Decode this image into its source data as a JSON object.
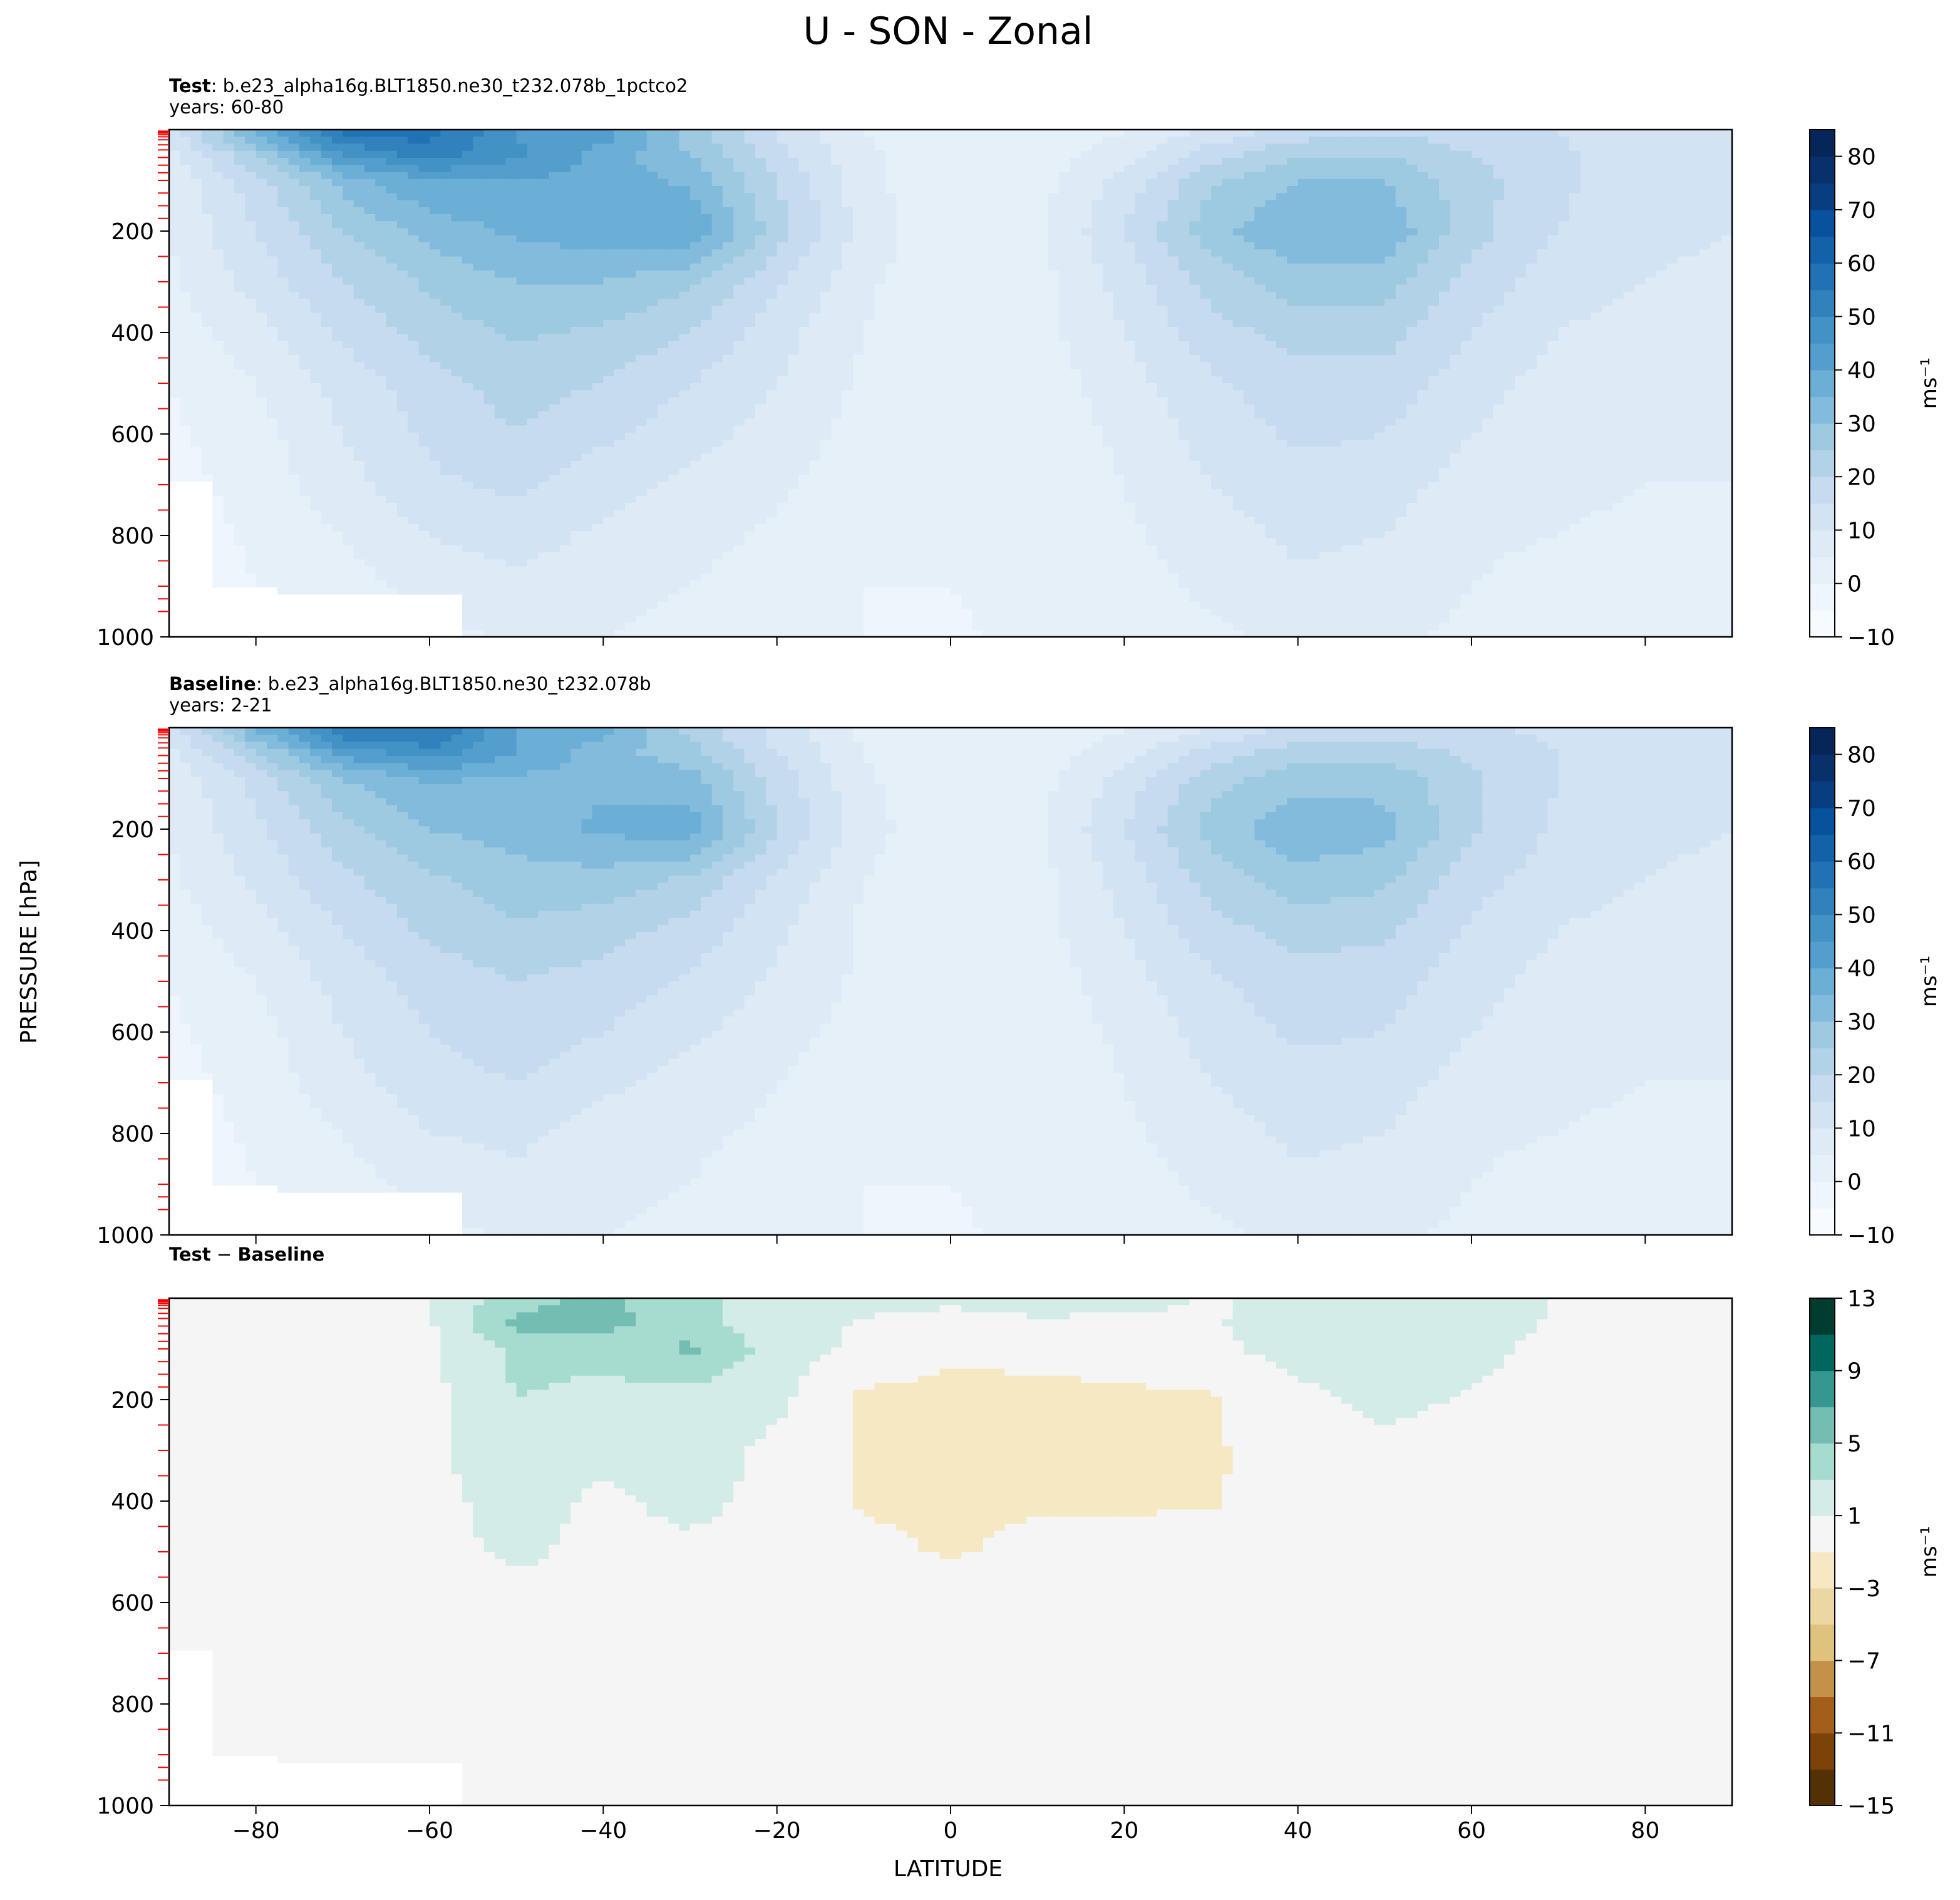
{
  "figure": {
    "title": "U - SON - Zonal",
    "ylabel": "PRESSURE [hPa]",
    "xlabel": "LATITUDE",
    "x_ticks": [
      -80,
      -60,
      -40,
      -20,
      0,
      20,
      40,
      60,
      80
    ],
    "x_tick_labels": [
      "−80",
      "−60",
      "−40",
      "−20",
      "0",
      "20",
      "40",
      "60",
      "80"
    ],
    "y_ticks": [
      200,
      400,
      600,
      800,
      1000
    ],
    "xlim": [
      -90,
      90
    ],
    "ylim": [
      1000,
      0
    ]
  },
  "chart_data": [
    {
      "type": "heatmap",
      "panel": "test",
      "header_bold": "Test",
      "header_rest": ": b.e23_alpha16g.BLT1850.ne30_t232.078b_1pctco2",
      "subheader": "years: 60-80",
      "colorbar": {
        "levels": [
          -10,
          -5,
          0,
          5,
          10,
          15,
          20,
          25,
          30,
          35,
          40,
          45,
          50,
          55,
          60,
          65,
          70,
          75,
          80,
          85
        ],
        "ticks": [
          -10,
          0,
          10,
          20,
          30,
          40,
          50,
          60,
          70,
          80
        ],
        "tick_labels": [
          "−10",
          "0",
          "10",
          "20",
          "30",
          "40",
          "50",
          "60",
          "70",
          "80"
        ],
        "label": "ms⁻¹",
        "colormap": "Blues"
      },
      "lat": [
        -90,
        -80,
        -70,
        -60,
        -50,
        -40,
        -30,
        -20,
        -10,
        0,
        10,
        20,
        30,
        40,
        50,
        60,
        70,
        80,
        90
      ],
      "pressure": [
        10,
        50,
        100,
        200,
        300,
        400,
        500,
        600,
        700,
        800,
        900,
        1000
      ],
      "u": [
        [
          12,
          35,
          55,
          57,
          45,
          42,
          28,
          15,
          5,
          2,
          3,
          5,
          12,
          18,
          20,
          18,
          15,
          12,
          10
        ],
        [
          8,
          25,
          45,
          52,
          46,
          38,
          30,
          17,
          6,
          1,
          2,
          8,
          18,
          25,
          25,
          20,
          16,
          12,
          10
        ],
        [
          6,
          18,
          32,
          40,
          40,
          38,
          34,
          20,
          7,
          0,
          3,
          12,
          24,
          30,
          30,
          22,
          16,
          12,
          10
        ],
        [
          5,
          15,
          25,
          32,
          36,
          38,
          40,
          22,
          8,
          1,
          4,
          15,
          28,
          35,
          34,
          22,
          15,
          12,
          10
        ],
        [
          4,
          12,
          20,
          26,
          30,
          30,
          26,
          16,
          6,
          1,
          3,
          12,
          22,
          28,
          27,
          18,
          12,
          10,
          8
        ],
        [
          2,
          8,
          16,
          22,
          26,
          24,
          20,
          12,
          5,
          1,
          3,
          10,
          18,
          22,
          22,
          15,
          10,
          8,
          7
        ],
        [
          0,
          5,
          12,
          18,
          22,
          20,
          15,
          10,
          4,
          1,
          2,
          8,
          14,
          18,
          18,
          12,
          8,
          7,
          6
        ],
        [
          -1,
          3,
          10,
          16,
          20,
          16,
          12,
          8,
          3,
          1,
          2,
          6,
          12,
          16,
          15,
          10,
          7,
          6,
          5
        ],
        [
          -2,
          2,
          8,
          14,
          16,
          12,
          9,
          6,
          2,
          0,
          2,
          5,
          10,
          13,
          12,
          8,
          6,
          5,
          5
        ],
        [
          -3,
          1,
          5,
          10,
          12,
          9,
          7,
          4,
          1,
          0,
          2,
          4,
          8,
          11,
          10,
          6,
          5,
          4,
          3
        ],
        [
          -4,
          0,
          3,
          7,
          9,
          7,
          5,
          2,
          0,
          0,
          2,
          3,
          6,
          9,
          8,
          5,
          3,
          2,
          3
        ],
        [
          -5,
          -2,
          0,
          3,
          6,
          5,
          3,
          1,
          0,
          -1,
          2,
          2,
          4,
          6,
          6,
          4,
          2,
          1,
          2
        ]
      ]
    },
    {
      "type": "heatmap",
      "panel": "baseline",
      "header_bold": "Baseline",
      "header_rest": ": b.e23_alpha16g.BLT1850.ne30_t232.078b",
      "subheader": "years: 2-21",
      "colorbar": {
        "levels": [
          -10,
          -5,
          0,
          5,
          10,
          15,
          20,
          25,
          30,
          35,
          40,
          45,
          50,
          55,
          60,
          65,
          70,
          75,
          80,
          85
        ],
        "ticks": [
          -10,
          0,
          10,
          20,
          30,
          40,
          50,
          60,
          70,
          80
        ],
        "tick_labels": [
          "−10",
          "0",
          "10",
          "20",
          "30",
          "40",
          "50",
          "60",
          "70",
          "80"
        ],
        "label": "ms⁻¹",
        "colormap": "Blues"
      },
      "lat": [
        -90,
        -80,
        -70,
        -60,
        -50,
        -40,
        -30,
        -20,
        -10,
        0,
        10,
        20,
        30,
        40,
        50,
        60,
        70,
        80,
        90
      ],
      "pressure": [
        10,
        50,
        100,
        200,
        300,
        400,
        500,
        600,
        700,
        800,
        900,
        1000
      ],
      "u": [
        [
          12,
          34,
          53,
          55,
          40,
          36,
          24,
          13,
          4,
          2,
          2,
          5,
          11,
          17,
          18,
          16,
          14,
          12,
          10
        ],
        [
          8,
          24,
          42,
          48,
          40,
          32,
          27,
          15,
          5,
          1,
          2,
          8,
          17,
          23,
          23,
          19,
          15,
          12,
          10
        ],
        [
          6,
          17,
          30,
          36,
          34,
          34,
          32,
          18,
          6,
          0,
          3,
          12,
          23,
          28,
          28,
          21,
          15,
          12,
          10
        ],
        [
          5,
          14,
          23,
          30,
          32,
          36,
          38,
          20,
          7,
          1,
          4,
          15,
          27,
          34,
          32,
          21,
          14,
          12,
          10
        ],
        [
          4,
          11,
          19,
          24,
          28,
          28,
          24,
          14,
          5,
          1,
          3,
          12,
          22,
          28,
          26,
          17,
          12,
          10,
          8
        ],
        [
          2,
          8,
          15,
          21,
          24,
          22,
          18,
          11,
          4,
          1,
          3,
          10,
          18,
          22,
          21,
          14,
          10,
          8,
          7
        ],
        [
          0,
          5,
          12,
          17,
          20,
          18,
          14,
          9,
          4,
          1,
          2,
          8,
          14,
          18,
          17,
          12,
          8,
          7,
          6
        ],
        [
          -1,
          3,
          10,
          15,
          18,
          15,
          11,
          7,
          3,
          1,
          2,
          6,
          12,
          16,
          15,
          10,
          7,
          6,
          5
        ],
        [
          -2,
          2,
          8,
          13,
          15,
          11,
          8,
          5,
          2,
          0,
          2,
          5,
          10,
          13,
          12,
          8,
          6,
          5,
          5
        ],
        [
          -3,
          1,
          5,
          10,
          11,
          8,
          6,
          4,
          1,
          0,
          2,
          4,
          8,
          11,
          10,
          6,
          5,
          4,
          3
        ],
        [
          -4,
          0,
          3,
          7,
          9,
          7,
          5,
          2,
          0,
          0,
          2,
          3,
          6,
          9,
          8,
          5,
          3,
          2,
          3
        ],
        [
          -5,
          -2,
          0,
          3,
          6,
          5,
          3,
          1,
          0,
          -1,
          2,
          2,
          4,
          6,
          6,
          4,
          2,
          1,
          2
        ]
      ]
    },
    {
      "type": "heatmap",
      "panel": "difference",
      "header_bold": "Test",
      "header_rest": " − ",
      "header_bold2": "Baseline",
      "colorbar": {
        "levels": [
          -15,
          -13,
          -11,
          -9,
          -7,
          -5,
          -3,
          -1,
          1,
          3,
          5,
          7,
          9,
          11,
          13
        ],
        "ticks": [
          -15,
          -11,
          -7,
          -3,
          1,
          5,
          9,
          13
        ],
        "tick_labels": [
          "−15",
          "−11",
          "−7",
          "−3",
          "1",
          "5",
          "9",
          "13"
        ],
        "label": "ms⁻¹",
        "colormap": "BrBG"
      },
      "lat": [
        -90,
        -80,
        -70,
        -60,
        -50,
        -40,
        -30,
        -20,
        -10,
        0,
        10,
        20,
        30,
        40,
        50,
        60,
        70,
        80,
        90
      ],
      "pressure": [
        10,
        50,
        100,
        200,
        300,
        400,
        500,
        600,
        700,
        800,
        900,
        1000
      ],
      "u": [
        [
          0,
          0.6,
          0.8,
          0.9,
          4.5,
          5.6,
          3.5,
          2.0,
          1.5,
          1.2,
          2.0,
          1.5,
          0.8,
          1.5,
          2.5,
          2.0,
          0.8,
          0.5,
          0.3
        ],
        [
          0,
          0.5,
          0.6,
          0.8,
          5.5,
          5.8,
          3.5,
          2.0,
          0.8,
          0.2,
          0.5,
          0.5,
          0.8,
          2.0,
          2.5,
          1.8,
          0.8,
          0.5,
          0.3
        ],
        [
          0,
          0.3,
          0.5,
          0.5,
          3.5,
          3.5,
          5.5,
          2.0,
          0.5,
          -0.6,
          -0.5,
          -0.2,
          0.5,
          1.8,
          2.0,
          1.5,
          0.5,
          0.3,
          0.2
        ],
        [
          0,
          0.3,
          0.5,
          0.5,
          3.0,
          2.5,
          2.0,
          1.5,
          -1.5,
          -1.6,
          -1.5,
          -1.4,
          -1.2,
          0.5,
          1.5,
          0.8,
          0.3,
          0.2,
          0.1
        ],
        [
          0,
          0.2,
          0.4,
          0.5,
          2.5,
          1.5,
          2.0,
          0.5,
          -1.3,
          -1.6,
          -1.4,
          -1.5,
          -1.3,
          0.2,
          0.5,
          0.3,
          0.2,
          0.1,
          0.1
        ],
        [
          0,
          0.2,
          0.3,
          0.4,
          1.8,
          0.6,
          1.6,
          0.3,
          -1.2,
          -1.5,
          -1.2,
          -1.3,
          -1.2,
          0.0,
          0.2,
          0.2,
          0.1,
          0.1,
          0.1
        ],
        [
          0,
          0.2,
          0.3,
          0.4,
          1.3,
          0.5,
          0.5,
          0.2,
          -0.5,
          -1.2,
          -0.5,
          -0.3,
          0.0,
          0.0,
          0.1,
          0.1,
          0.1,
          0.1,
          0.1
        ],
        [
          0,
          0.1,
          0.2,
          0.3,
          0.5,
          0.3,
          0.3,
          0.2,
          0.0,
          0.0,
          0.0,
          0.0,
          0.0,
          0.0,
          0.0,
          0.0,
          0.0,
          0.0,
          0.0
        ],
        [
          0,
          0.1,
          0.2,
          0.2,
          0.3,
          0.2,
          0.2,
          0.1,
          0.0,
          0.0,
          0.0,
          0.0,
          0.0,
          0.0,
          0.0,
          0.0,
          0.0,
          0.0,
          0.0
        ],
        [
          0,
          0.1,
          0.1,
          0.2,
          0.2,
          0.1,
          0.1,
          0.1,
          0.0,
          0.0,
          0.0,
          0.0,
          0.0,
          0.0,
          0.0,
          0.0,
          0.0,
          0.0,
          0.0
        ],
        [
          0,
          0.0,
          0.1,
          0.1,
          0.1,
          0.1,
          0.0,
          0.0,
          0.0,
          0.0,
          0.0,
          0.0,
          0.0,
          0.0,
          0.0,
          0.0,
          0.0,
          0.0,
          0.0
        ],
        [
          0,
          0.0,
          0.0,
          0.0,
          0.0,
          0.0,
          0.0,
          0.0,
          0.0,
          0.0,
          0.0,
          0.0,
          0.0,
          0.0,
          0.0,
          0.0,
          0.0,
          0.0,
          0.0
        ]
      ]
    }
  ],
  "colors": {
    "blues": [
      "#f7fbff",
      "#eff5fc",
      "#e6f0f9",
      "#deebf7",
      "#d2e3f3",
      "#c6dbef",
      "#b2d2e8",
      "#9ecae1",
      "#82bbdb",
      "#6baed6",
      "#539ecd",
      "#4292c6",
      "#3181bd",
      "#2171b5",
      "#1361a9",
      "#08519c",
      "#083e80",
      "#08306b",
      "#06265a"
    ],
    "brbg": [
      "#543005",
      "#7b4309",
      "#a35e1b",
      "#c4914a",
      "#dfc27d",
      "#ecd7a3",
      "#f6e8c3",
      "#f5f5f5",
      "#d4ece8",
      "#a6dbd0",
      "#73bdb2",
      "#35978f",
      "#01665e",
      "#003c30"
    ],
    "land": "#ffffff",
    "ref_ticks": "#ff0000"
  }
}
